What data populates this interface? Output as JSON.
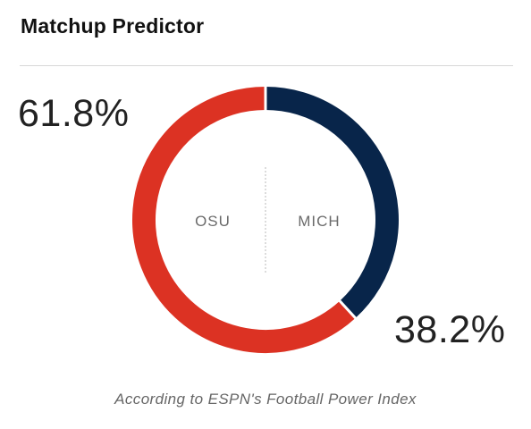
{
  "header": {
    "title": "Matchup Predictor"
  },
  "chart_data": {
    "type": "pie",
    "series": [
      {
        "name": "OSU",
        "value": 61.8,
        "label": "61.8%",
        "color": "#dc3223"
      },
      {
        "name": "MICH",
        "value": 38.2,
        "label": "38.2%",
        "color": "#08254a"
      }
    ]
  },
  "footer": {
    "note": "According to ESPN's Football Power Index"
  }
}
